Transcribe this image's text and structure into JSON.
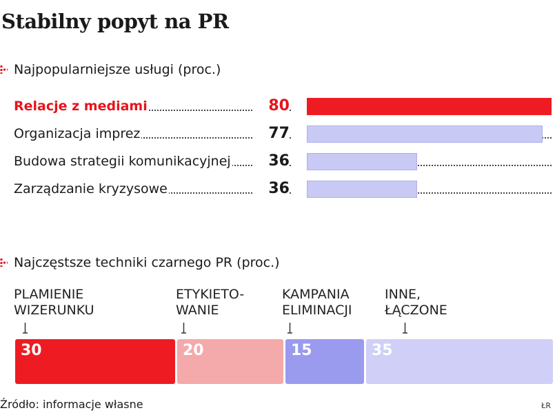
{
  "title": "Stabilny popyt na PR",
  "source": "Źródło: informacje własne",
  "credit": "ŁR",
  "colors": {
    "highlight": "#ee1c22",
    "bar": "#c9c9f5",
    "segments": [
      "#ee1c22",
      "#f4a9ab",
      "#9a9aee",
      "#cfcff7"
    ]
  },
  "chart_data": [
    {
      "type": "bar",
      "orientation": "horizontal",
      "title": "Najpopularniejsze usługi (proc.)",
      "categories": [
        "Relacje z mediami",
        "Organizacja imprez",
        "Budowa strategii komunikacyjnej",
        "Zarządzanie kryzysowe"
      ],
      "values": [
        80,
        77,
        36,
        36
      ],
      "value_labels": [
        "80",
        "77",
        "36",
        "36"
      ],
      "highlight_index": 0,
      "xlim": [
        0,
        80
      ]
    },
    {
      "type": "bar",
      "orientation": "stacked-horizontal",
      "title": "Najczęstsze techniki czarnego PR (proc.)",
      "categories": [
        [
          "PLAMIENIE",
          "WIZERUNKU"
        ],
        [
          "ETYKIETO-",
          "WANIE"
        ],
        [
          "KAMPANIA",
          "ELIMINACJI"
        ],
        [
          "INNE,",
          "ŁĄCZONE"
        ]
      ],
      "values": [
        30,
        20,
        15,
        35
      ],
      "value_labels": [
        "30",
        "20",
        "15",
        "35"
      ]
    }
  ]
}
